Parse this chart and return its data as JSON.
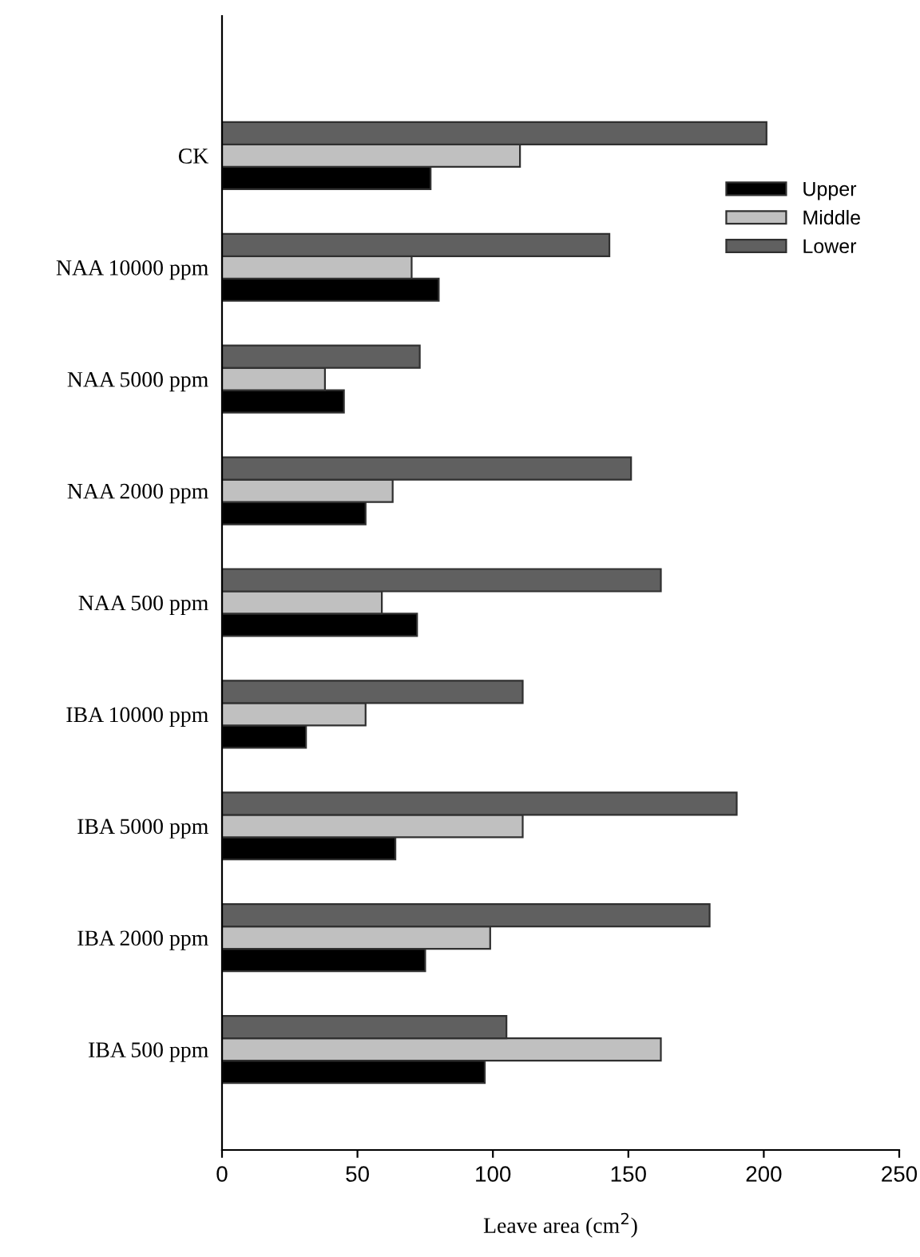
{
  "chart_data": {
    "type": "bar",
    "orientation": "horizontal",
    "xlabel": "Leave area (cm$^{2}$)",
    "categories": [
      "CK",
      "NAA 10000 ppm",
      "NAA 5000 ppm",
      "NAA 2000 ppm",
      "NAA 500 ppm",
      "IBA 10000 ppm",
      "IBA 5000 ppm",
      "IBA 2000 ppm",
      "IBA 500 ppm"
    ],
    "series": [
      {
        "name": "Upper",
        "color": "#000000",
        "values": [
          77,
          80,
          45,
          53,
          72,
          31,
          64,
          75,
          97
        ]
      },
      {
        "name": "Middle",
        "color": "#c0c0c0",
        "values": [
          110,
          70,
          38,
          63,
          59,
          53,
          111,
          99,
          162
        ]
      },
      {
        "name": "Lower",
        "color": "#606060",
        "values": [
          201,
          143,
          73,
          151,
          162,
          111,
          190,
          180,
          105
        ]
      }
    ],
    "xlim": [
      0,
      250
    ],
    "xticks": [
      0,
      50,
      100,
      150,
      200,
      250
    ],
    "grid": false,
    "legend": "top right"
  }
}
